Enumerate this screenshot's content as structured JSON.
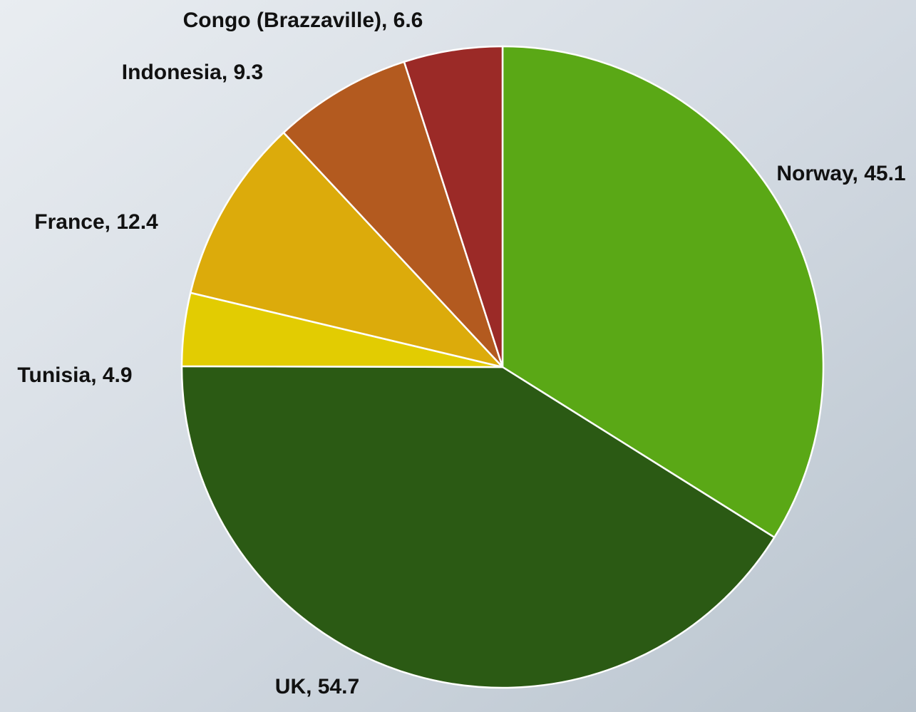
{
  "chart_data": {
    "type": "pie",
    "values": [
      45.1,
      54.7,
      4.9,
      12.4,
      9.3,
      6.6
    ],
    "value_labels": [
      "Norway, 45.1",
      "UK, 54.7",
      "Tunisia, 4.9",
      "France, 12.4",
      "Indonesia, 9.3",
      "Congo (Brazzaville), 6.6"
    ],
    "colors": [
      "#5aa816",
      "#2b5a14",
      "#e2cc02",
      "#dcab0b",
      "#b35a1f",
      "#9b2a27"
    ]
  }
}
